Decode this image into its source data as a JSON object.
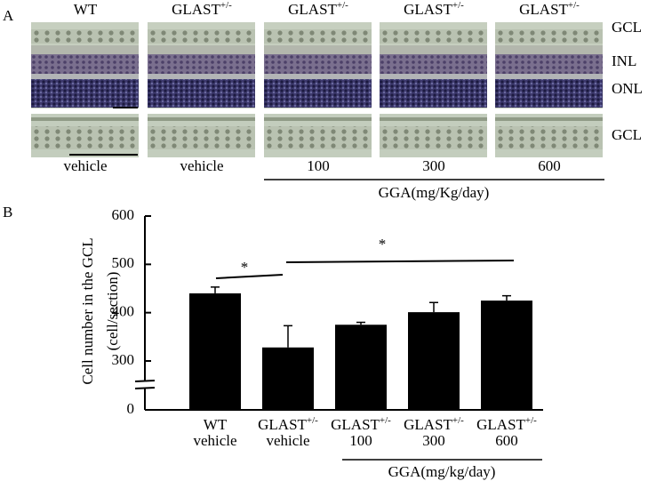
{
  "panel_labels": [
    "A",
    "B"
  ],
  "panel_a": {
    "columns": [
      {
        "text": "WT"
      },
      {
        "text": "GLAST",
        "sup": "+/-"
      },
      {
        "text": "GLAST",
        "sup": "+/-"
      },
      {
        "text": "GLAST",
        "sup": "+/-"
      },
      {
        "text": "GLAST",
        "sup": "+/-"
      }
    ],
    "layers": [
      "GCL",
      "INL",
      "ONL",
      "GCL"
    ],
    "treatments": [
      "vehicle",
      "vehicle",
      "100",
      "300",
      "600"
    ],
    "treatment_group": "GGA(mg/Kg/day)"
  },
  "chart_data": {
    "type": "bar",
    "y_label": [
      "Cell number in the  GCL",
      "(cell/section)"
    ],
    "categories": [
      {
        "text": "WT",
        "line2": "vehicle"
      },
      {
        "text": "GLAST",
        "sup": "+/-",
        "line2": "vehicle"
      },
      {
        "text": "GLAST",
        "sup": "+/-",
        "line2": "100"
      },
      {
        "text": "GLAST",
        "sup": "+/-",
        "line2": "300"
      },
      {
        "text": "GLAST",
        "sup": "+/-",
        "line2": "600"
      }
    ],
    "values": [
      440,
      328,
      375,
      401,
      425
    ],
    "errors": [
      13,
      45,
      5,
      20,
      10
    ],
    "color": "#000000",
    "ylim": [
      0,
      600
    ],
    "yticks": [
      0,
      300,
      400,
      500,
      600
    ],
    "y_break": [
      0,
      300
    ],
    "group_label": "GGA(mg/kg/day)",
    "annotations": [
      "*",
      "*"
    ]
  }
}
